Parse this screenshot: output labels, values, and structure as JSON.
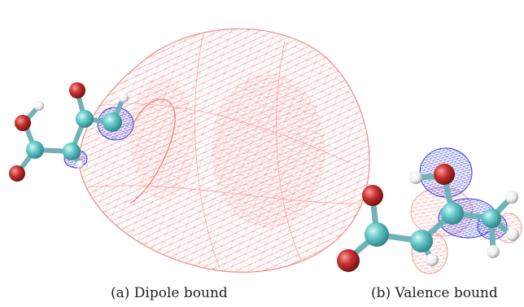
{
  "panels": [
    {
      "caption": "(a) Dipole bound"
    },
    {
      "caption": "(b) Valence bound"
    }
  ],
  "colors": {
    "mesh_red": "#f28c8c",
    "mesh_blue": "#3b3be0",
    "carbon": "#5fc7c7",
    "oxygen": "#c8312f",
    "hydrogen": "#f2f2f2",
    "bond": "#6fb3b8"
  }
}
